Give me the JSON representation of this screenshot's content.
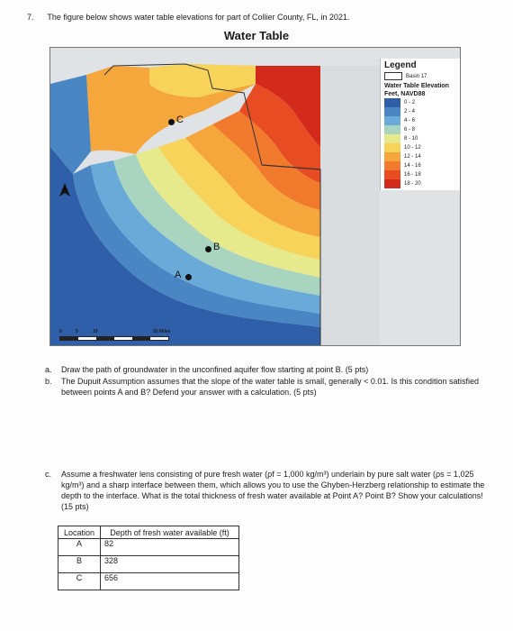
{
  "question": {
    "number": "7.",
    "text": "The figure below shows water table elevations for part of Collier County, FL, in 2021."
  },
  "map": {
    "title": "Water Table",
    "points": [
      "C",
      "B",
      "A"
    ],
    "scale_labels": [
      "0",
      "5",
      "10",
      "20 Miles"
    ],
    "legend": {
      "title": "Legend",
      "basin_label": "Basin 17",
      "heading_line1": "Water Table Elevation",
      "heading_line2": "Feet, NAVD88",
      "classes": [
        {
          "label": "0 - 2",
          "color": "#2f5fa8"
        },
        {
          "label": "2 - 4",
          "color": "#4a86c4"
        },
        {
          "label": "4 - 6",
          "color": "#6aaad8"
        },
        {
          "label": "6 - 8",
          "color": "#a9d5c0"
        },
        {
          "label": "8 - 10",
          "color": "#e6ea8c"
        },
        {
          "label": "10 - 12",
          "color": "#f7d35a"
        },
        {
          "label": "12 - 14",
          "color": "#f6a73c"
        },
        {
          "label": "14 - 16",
          "color": "#f17a2c"
        },
        {
          "label": "16 - 18",
          "color": "#e74c22"
        },
        {
          "label": "18 - 20",
          "color": "#d42a1c"
        }
      ]
    }
  },
  "parts": {
    "a_letter": "a.",
    "a_text": "Draw the path of groundwater in the unconfined aquifer flow starting at point B. (5 pts)",
    "b_letter": "b.",
    "b_text": "The Dupuit Assumption assumes that the slope of the water table is small, generally < 0.01. Is this condition satisfied between points A and B? Defend your answer with a calculation. (5 pts)",
    "c_letter": "c.",
    "c_text": "Assume a freshwater lens consisting of pure fresh water (ρf = 1,000 kg/m³) underlain by pure salt water (ρs = 1,025 kg/m³) and a sharp interface between them, which allows you to use the Ghyben-Herzberg relationship to estimate the depth to the interface. What is the total thickness of fresh water available at Point A? Point B? Show your calculations! (15 pts)"
  },
  "table": {
    "headers": [
      "Location",
      "Depth of fresh water available (ft)"
    ],
    "rows": [
      {
        "location": "A",
        "depth": "82"
      },
      {
        "location": "B",
        "depth": "328"
      },
      {
        "location": "C",
        "depth": "656"
      }
    ]
  }
}
